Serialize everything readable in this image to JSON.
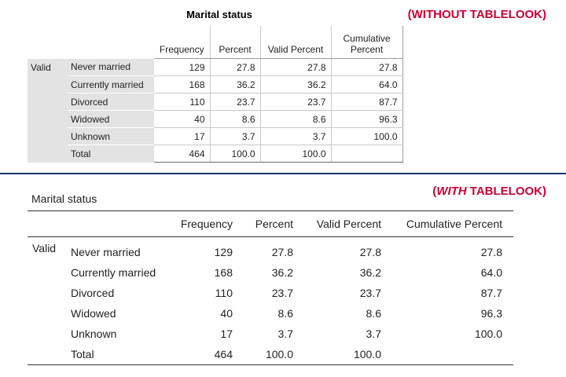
{
  "colors": {
    "note_red": "#cc0033",
    "divider_blue": "#1f2f6b",
    "stub_gray": "#e3e3e3"
  },
  "notes": {
    "top": "(WITHOUT TABLELOOK)",
    "bottom_open": "(",
    "bottom_em": "WITH",
    "bottom_rest": " TABLELOOK)"
  },
  "table_without": {
    "title": "Marital status",
    "group_label": "Valid",
    "headers": {
      "frequency": "Frequency",
      "percent": "Percent",
      "valid_percent": "Valid Percent",
      "cumulative_percent": "Cumulative Percent"
    },
    "rows": [
      {
        "label": "Never married",
        "frequency": "129",
        "percent": "27.8",
        "valid_percent": "27.8",
        "cumulative_percent": "27.8"
      },
      {
        "label": "Currently married",
        "frequency": "168",
        "percent": "36.2",
        "valid_percent": "36.2",
        "cumulative_percent": "64.0"
      },
      {
        "label": "Divorced",
        "frequency": "110",
        "percent": "23.7",
        "valid_percent": "23.7",
        "cumulative_percent": "87.7"
      },
      {
        "label": "Widowed",
        "frequency": "40",
        "percent": "8.6",
        "valid_percent": "8.6",
        "cumulative_percent": "96.3"
      },
      {
        "label": "Unknown",
        "frequency": "17",
        "percent": "3.7",
        "valid_percent": "3.7",
        "cumulative_percent": "100.0"
      },
      {
        "label": "Total",
        "frequency": "464",
        "percent": "100.0",
        "valid_percent": "100.0",
        "cumulative_percent": ""
      }
    ]
  },
  "table_with": {
    "title": "Marital status",
    "group_label": "Valid",
    "headers": {
      "frequency": "Frequency",
      "percent": "Percent",
      "valid_percent": "Valid Percent",
      "cumulative_percent": "Cumulative Percent"
    },
    "rows": [
      {
        "label": "Never married",
        "frequency": "129",
        "percent": "27.8",
        "valid_percent": "27.8",
        "cumulative_percent": "27.8"
      },
      {
        "label": "Currently married",
        "frequency": "168",
        "percent": "36.2",
        "valid_percent": "36.2",
        "cumulative_percent": "64.0"
      },
      {
        "label": "Divorced",
        "frequency": "110",
        "percent": "23.7",
        "valid_percent": "23.7",
        "cumulative_percent": "87.7"
      },
      {
        "label": "Widowed",
        "frequency": "40",
        "percent": "8.6",
        "valid_percent": "8.6",
        "cumulative_percent": "96.3"
      },
      {
        "label": "Unknown",
        "frequency": "17",
        "percent": "3.7",
        "valid_percent": "3.7",
        "cumulative_percent": "100.0"
      },
      {
        "label": "Total",
        "frequency": "464",
        "percent": "100.0",
        "valid_percent": "100.0",
        "cumulative_percent": ""
      }
    ]
  }
}
